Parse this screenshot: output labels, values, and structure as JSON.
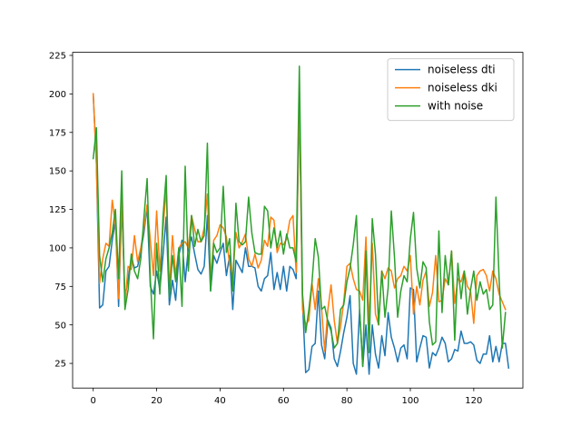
{
  "chart_data": {
    "type": "line",
    "title": "",
    "xlabel": "",
    "ylabel": "",
    "xlim": [
      -6.5,
      135.5
    ],
    "ylim": [
      9,
      227
    ],
    "x_ticks": [
      0,
      20,
      40,
      60,
      80,
      100,
      120
    ],
    "y_ticks": [
      25,
      50,
      75,
      100,
      125,
      150,
      175,
      200,
      225
    ],
    "grid": false,
    "legend_position": "top-right",
    "series": [
      {
        "name": "noiseless dti",
        "color": "#1f77b4",
        "values": [
          200,
          155,
          61,
          63,
          85,
          88,
          105,
          118,
          62,
          128,
          68,
          80,
          93,
          87,
          88,
          98,
          110,
          127,
          75,
          70,
          85,
          73,
          95,
          120,
          63,
          79,
          66,
          95,
          105,
          78,
          100,
          107,
          96,
          86,
          83,
          88,
          121,
          72,
          95,
          90,
          97,
          103,
          82,
          95,
          60,
          92,
          88,
          84,
          100,
          88,
          88,
          87,
          75,
          72,
          80,
          82,
          97,
          73,
          84,
          73,
          88,
          72,
          88,
          86,
          80,
          195,
          65,
          19,
          21,
          36,
          38,
          72,
          37,
          28,
          53,
          48,
          28,
          23,
          33,
          45,
          55,
          69,
          25,
          18,
          60,
          23,
          50,
          18,
          50,
          31,
          22,
          43,
          30,
          58,
          42,
          35,
          26,
          35,
          37,
          28,
          74,
          73,
          26,
          35,
          43,
          42,
          22,
          32,
          30,
          35,
          42,
          38,
          26,
          28,
          34,
          33,
          46,
          38,
          38,
          39,
          37,
          27,
          25,
          31,
          31,
          43,
          26,
          36,
          26,
          38,
          38,
          22
        ]
      },
      {
        "name": "noiseless dki",
        "color": "#ff7f0e",
        "values": [
          200,
          155,
          77,
          93,
          103,
          101,
          131,
          115,
          67,
          132,
          63,
          88,
          86,
          108,
          91,
          100,
          113,
          128,
          105,
          82,
          124,
          85,
          112,
          139,
          72,
          108,
          82,
          100,
          103,
          104,
          100,
          121,
          112,
          104,
          104,
          113,
          135,
          80,
          105,
          108,
          115,
          113,
          107,
          89,
          81,
          110,
          100,
          104,
          109,
          93,
          88,
          96,
          87,
          92,
          105,
          101,
          120,
          118,
          97,
          103,
          102,
          106,
          118,
          121,
          84,
          200,
          60,
          50,
          53,
          77,
          60,
          80,
          61,
          33,
          60,
          76,
          53,
          38,
          49,
          65,
          88,
          90,
          80,
          73,
          72,
          66,
          107,
          50,
          103,
          57,
          50,
          85,
          80,
          87,
          85,
          74,
          80,
          82,
          88,
          85,
          95,
          57,
          75,
          63,
          79,
          85,
          62,
          71,
          95,
          65,
          66,
          80,
          76,
          98,
          64,
          80,
          78,
          85,
          75,
          72,
          51,
          82,
          85,
          86,
          82,
          72,
          85,
          80,
          70,
          65,
          60
        ]
      },
      {
        "name": "with noise",
        "color": "#2ca02c",
        "values": [
          158,
          178,
          95,
          78,
          93,
          100,
          110,
          125,
          80,
          150,
          60,
          73,
          96,
          85,
          80,
          93,
          120,
          145,
          80,
          41,
          103,
          70,
          120,
          147,
          68,
          95,
          78,
          100,
          62,
          153,
          85,
          121,
          101,
          112,
          104,
          108,
          168,
          72,
          103,
          97,
          100,
          140,
          97,
          106,
          72,
          129,
          104,
          102,
          104,
          133,
          110,
          97,
          96,
          96,
          127,
          124,
          100,
          113,
          100,
          111,
          96,
          109,
          100,
          100,
          91,
          218,
          70,
          45,
          60,
          78,
          106,
          94,
          60,
          62,
          52,
          46,
          35,
          38,
          60,
          63,
          78,
          87,
          102,
          121,
          60,
          23,
          98,
          32,
          119,
          96,
          50,
          85,
          55,
          74,
          124,
          94,
          55,
          72,
          82,
          78,
          106,
          123,
          87,
          74,
          91,
          87,
          52,
          37,
          39,
          111,
          58,
          95,
          76,
          98,
          40,
          90,
          67,
          85,
          57,
          73,
          85,
          66,
          78,
          70,
          73,
          60,
          63,
          133,
          80,
          35,
          58
        ]
      }
    ]
  }
}
